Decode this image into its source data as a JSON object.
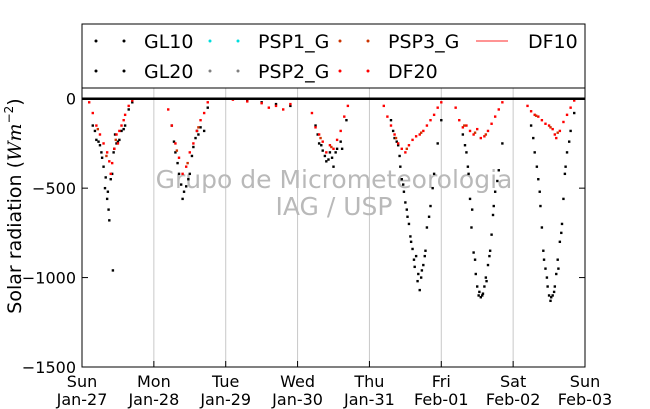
{
  "chart_data": {
    "type": "scatter",
    "title": "",
    "ylabel": "Solar radiation ($Wm^{-2}$)",
    "ylabel_parts": {
      "main": "Solar radiation (",
      "italic": "Wm",
      "sup": "−2",
      "close": ")"
    },
    "xlabel": "",
    "ylim": [
      -1500,
      60
    ],
    "xlim": [
      0,
      7
    ],
    "yticks": [
      {
        "value": 0,
        "label": "0"
      },
      {
        "value": -500,
        "label": "−500"
      },
      {
        "value": -1000,
        "label": "−1000"
      },
      {
        "value": -1500,
        "label": "−1500"
      }
    ],
    "xticks": [
      {
        "value": 0,
        "day": "Sun",
        "date": "Jan-27"
      },
      {
        "value": 1,
        "day": "Mon",
        "date": "Jan-28"
      },
      {
        "value": 2,
        "day": "Tue",
        "date": "Jan-29"
      },
      {
        "value": 3,
        "day": "Wed",
        "date": "Jan-30"
      },
      {
        "value": 4,
        "day": "Thu",
        "date": "Jan-31"
      },
      {
        "value": 5,
        "day": "Fri",
        "date": "Feb-01"
      },
      {
        "value": 6,
        "day": "Sat",
        "date": "Feb-02"
      },
      {
        "value": 7,
        "day": "Sun",
        "date": "Feb-03"
      }
    ],
    "grid": {
      "x": true,
      "y": false
    },
    "legend_placement": "top",
    "watermark": [
      "Grupo de Micrometeorologia",
      "IAG / USP"
    ],
    "colors": {
      "GL10": "#000000",
      "GL20": "#000000",
      "PSP1_G": "#00dddd",
      "PSP2_G": "#808080",
      "PSP3_G": "#cc3300",
      "DF20": "#ff0000",
      "DF10": "#ff7070"
    },
    "legend": [
      {
        "name": "GL10",
        "marker": "dot",
        "color": "#000000"
      },
      {
        "name": "PSP1_G",
        "marker": "dot",
        "color": "#00dddd"
      },
      {
        "name": "PSP3_G",
        "marker": "dot",
        "color": "#cc3300"
      },
      {
        "name": "DF10",
        "marker": "line",
        "color": "#ff7070"
      },
      {
        "name": "GL20",
        "marker": "dot",
        "color": "#000000"
      },
      {
        "name": "PSP2_G",
        "marker": "dot",
        "color": "#808080"
      },
      {
        "name": "DF20",
        "marker": "dot",
        "color": "#ff0000"
      }
    ],
    "series": [
      {
        "name": "GL10",
        "color": "#000000",
        "points": [
          [
            0.15,
            -150
          ],
          [
            0.2,
            -230
          ],
          [
            0.25,
            -260
          ],
          [
            0.28,
            -330
          ],
          [
            0.3,
            -380
          ],
          [
            0.32,
            -500
          ],
          [
            0.35,
            -560
          ],
          [
            0.37,
            -620
          ],
          [
            0.38,
            -680
          ],
          [
            0.42,
            -420
          ],
          [
            0.44,
            -300
          ],
          [
            0.46,
            -200
          ],
          [
            0.48,
            -250
          ],
          [
            0.52,
            -230
          ],
          [
            0.55,
            -180
          ],
          [
            0.6,
            -150
          ],
          [
            0.65,
            -60
          ],
          [
            0.7,
            -20
          ],
          [
            0.43,
            -960
          ],
          [
            1.25,
            -150
          ],
          [
            1.3,
            -300
          ],
          [
            1.35,
            -420
          ],
          [
            1.4,
            -560
          ],
          [
            1.45,
            -490
          ],
          [
            1.5,
            -420
          ],
          [
            1.55,
            -270
          ],
          [
            1.6,
            -180
          ],
          [
            1.62,
            -200
          ],
          [
            1.7,
            -180
          ],
          [
            1.75,
            -50
          ],
          [
            2.3,
            -10
          ],
          [
            2.5,
            -20
          ],
          [
            2.7,
            -30
          ],
          [
            2.9,
            -40
          ],
          [
            3.25,
            -150
          ],
          [
            3.3,
            -250
          ],
          [
            3.35,
            -290
          ],
          [
            3.4,
            -350
          ],
          [
            3.45,
            -300
          ],
          [
            3.5,
            -380
          ],
          [
            3.55,
            -280
          ],
          [
            3.62,
            -280
          ],
          [
            3.68,
            -120
          ],
          [
            4.3,
            -120
          ],
          [
            4.35,
            -220
          ],
          [
            4.4,
            -260
          ],
          [
            4.42,
            -320
          ],
          [
            4.45,
            -450
          ],
          [
            4.48,
            -520
          ],
          [
            4.5,
            -580
          ],
          [
            4.52,
            -620
          ],
          [
            4.55,
            -700
          ],
          [
            4.57,
            -770
          ],
          [
            4.6,
            -840
          ],
          [
            4.62,
            -900
          ],
          [
            4.65,
            -880
          ],
          [
            4.68,
            -980
          ],
          [
            4.7,
            -1070
          ],
          [
            4.72,
            -1000
          ],
          [
            4.75,
            -930
          ],
          [
            4.78,
            -850
          ],
          [
            4.8,
            -720
          ],
          [
            4.85,
            -600
          ],
          [
            4.9,
            -420
          ],
          [
            4.95,
            -250
          ],
          [
            5.0,
            -120
          ],
          [
            5.3,
            -200
          ],
          [
            5.35,
            -300
          ],
          [
            5.38,
            -420
          ],
          [
            5.4,
            -560
          ],
          [
            5.42,
            -720
          ],
          [
            5.45,
            -860
          ],
          [
            5.48,
            -980
          ],
          [
            5.5,
            -1050
          ],
          [
            5.52,
            -1100
          ],
          [
            5.55,
            -1110
          ],
          [
            5.58,
            -1090
          ],
          [
            5.6,
            -1050
          ],
          [
            5.62,
            -1000
          ],
          [
            5.65,
            -930
          ],
          [
            5.68,
            -850
          ],
          [
            5.7,
            -760
          ],
          [
            5.72,
            -650
          ],
          [
            5.75,
            -520
          ],
          [
            5.8,
            -400
          ],
          [
            5.85,
            -250
          ],
          [
            6.25,
            -150
          ],
          [
            6.3,
            -300
          ],
          [
            6.35,
            -450
          ],
          [
            6.38,
            -600
          ],
          [
            6.4,
            -720
          ],
          [
            6.42,
            -850
          ],
          [
            6.45,
            -950
          ],
          [
            6.48,
            -1050
          ],
          [
            6.5,
            -1100
          ],
          [
            6.52,
            -1130
          ],
          [
            6.55,
            -1100
          ],
          [
            6.58,
            -1050
          ],
          [
            6.6,
            -980
          ],
          [
            6.62,
            -900
          ],
          [
            6.65,
            -800
          ],
          [
            6.68,
            -700
          ],
          [
            6.7,
            -560
          ],
          [
            6.72,
            -420
          ],
          [
            6.75,
            -300
          ],
          [
            6.8,
            -180
          ],
          [
            6.85,
            -80
          ]
        ]
      },
      {
        "name": "GL20",
        "color": "#000000",
        "points": [
          [
            0.18,
            -180
          ],
          [
            0.23,
            -240
          ],
          [
            0.27,
            -300
          ],
          [
            0.33,
            -440
          ],
          [
            0.36,
            -520
          ],
          [
            0.4,
            -450
          ],
          [
            0.45,
            -280
          ],
          [
            0.5,
            -240
          ],
          [
            0.58,
            -170
          ],
          [
            1.28,
            -240
          ],
          [
            1.33,
            -360
          ],
          [
            1.38,
            -480
          ],
          [
            1.42,
            -520
          ],
          [
            1.48,
            -450
          ],
          [
            1.53,
            -320
          ],
          [
            1.58,
            -220
          ],
          [
            1.65,
            -160
          ],
          [
            3.28,
            -200
          ],
          [
            3.33,
            -260
          ],
          [
            3.38,
            -320
          ],
          [
            3.43,
            -340
          ],
          [
            3.48,
            -330
          ],
          [
            3.53,
            -300
          ],
          [
            3.6,
            -240
          ],
          [
            4.33,
            -180
          ],
          [
            4.38,
            -240
          ],
          [
            4.43,
            -380
          ],
          [
            4.47,
            -480
          ],
          [
            4.53,
            -660
          ],
          [
            4.58,
            -800
          ],
          [
            4.63,
            -940
          ],
          [
            4.67,
            -1020
          ],
          [
            4.73,
            -960
          ],
          [
            4.77,
            -880
          ],
          [
            4.83,
            -660
          ],
          [
            4.88,
            -500
          ],
          [
            5.33,
            -260
          ],
          [
            5.37,
            -380
          ],
          [
            5.43,
            -620
          ],
          [
            5.47,
            -900
          ],
          [
            5.53,
            -1080
          ],
          [
            5.57,
            -1100
          ],
          [
            5.63,
            -1020
          ],
          [
            5.67,
            -880
          ],
          [
            5.73,
            -600
          ],
          [
            5.78,
            -460
          ],
          [
            6.28,
            -220
          ],
          [
            6.33,
            -380
          ],
          [
            6.37,
            -520
          ],
          [
            6.43,
            -900
          ],
          [
            6.47,
            -1000
          ],
          [
            6.53,
            -1110
          ],
          [
            6.57,
            -1080
          ],
          [
            6.63,
            -950
          ],
          [
            6.67,
            -750
          ],
          [
            6.73,
            -380
          ],
          [
            6.78,
            -240
          ]
        ]
      },
      {
        "name": "DF20",
        "color": "#ff0000",
        "points": [
          [
            0.1,
            -20
          ],
          [
            0.15,
            -80
          ],
          [
            0.2,
            -150
          ],
          [
            0.25,
            -200
          ],
          [
            0.3,
            -250
          ],
          [
            0.35,
            -300
          ],
          [
            0.38,
            -350
          ],
          [
            0.4,
            -420
          ],
          [
            0.42,
            -360
          ],
          [
            0.45,
            -280
          ],
          [
            0.48,
            -200
          ],
          [
            0.5,
            -250
          ],
          [
            0.52,
            -180
          ],
          [
            0.55,
            -150
          ],
          [
            0.58,
            -120
          ],
          [
            0.6,
            -90
          ],
          [
            0.65,
            -40
          ],
          [
            0.7,
            -10
          ],
          [
            1.2,
            -60
          ],
          [
            1.25,
            -150
          ],
          [
            1.3,
            -250
          ],
          [
            1.35,
            -330
          ],
          [
            1.4,
            -420
          ],
          [
            1.45,
            -380
          ],
          [
            1.5,
            -300
          ],
          [
            1.55,
            -250
          ],
          [
            1.6,
            -180
          ],
          [
            1.65,
            -120
          ],
          [
            1.7,
            -80
          ],
          [
            1.75,
            -20
          ],
          [
            2.1,
            -5
          ],
          [
            2.3,
            -15
          ],
          [
            2.5,
            -25
          ],
          [
            2.6,
            -50
          ],
          [
            2.7,
            -40
          ],
          [
            2.8,
            -60
          ],
          [
            2.9,
            -30
          ],
          [
            3.2,
            -80
          ],
          [
            3.25,
            -160
          ],
          [
            3.3,
            -200
          ],
          [
            3.35,
            -240
          ],
          [
            3.4,
            -300
          ],
          [
            3.45,
            -260
          ],
          [
            3.5,
            -280
          ],
          [
            3.55,
            -230
          ],
          [
            3.6,
            -180
          ],
          [
            3.65,
            -100
          ],
          [
            3.7,
            -40
          ],
          [
            4.2,
            -40
          ],
          [
            4.25,
            -100
          ],
          [
            4.3,
            -150
          ],
          [
            4.35,
            -200
          ],
          [
            4.4,
            -250
          ],
          [
            4.45,
            -280
          ],
          [
            4.5,
            -300
          ],
          [
            4.55,
            -260
          ],
          [
            4.6,
            -230
          ],
          [
            4.65,
            -210
          ],
          [
            4.7,
            -200
          ],
          [
            4.75,
            -180
          ],
          [
            4.8,
            -150
          ],
          [
            4.85,
            -120
          ],
          [
            4.9,
            -90
          ],
          [
            4.95,
            -50
          ],
          [
            5.0,
            -20
          ],
          [
            5.2,
            -50
          ],
          [
            5.25,
            -120
          ],
          [
            5.3,
            -160
          ],
          [
            5.35,
            -150
          ],
          [
            5.4,
            -180
          ],
          [
            5.45,
            -200
          ],
          [
            5.5,
            -170
          ],
          [
            5.55,
            -220
          ],
          [
            5.6,
            -210
          ],
          [
            5.65,
            -180
          ],
          [
            5.7,
            -140
          ],
          [
            5.75,
            -100
          ],
          [
            5.8,
            -60
          ],
          [
            5.85,
            -20
          ],
          [
            6.2,
            -40
          ],
          [
            6.25,
            -70
          ],
          [
            6.3,
            -90
          ],
          [
            6.35,
            -100
          ],
          [
            6.4,
            -120
          ],
          [
            6.45,
            -140
          ],
          [
            6.5,
            -150
          ],
          [
            6.55,
            -170
          ],
          [
            6.58,
            -200
          ],
          [
            6.6,
            -220
          ],
          [
            6.65,
            -180
          ],
          [
            6.7,
            -130
          ],
          [
            6.75,
            -90
          ],
          [
            6.8,
            -50
          ],
          [
            6.85,
            -10
          ]
        ]
      },
      {
        "name": "PSP3_G",
        "color": "#cc3300",
        "points": [
          [
            0.22,
            -170
          ],
          [
            0.34,
            -320
          ],
          [
            0.47,
            -230
          ],
          [
            1.32,
            -290
          ],
          [
            1.47,
            -360
          ],
          [
            1.62,
            -160
          ],
          [
            3.32,
            -220
          ],
          [
            3.47,
            -270
          ],
          [
            4.37,
            -220
          ],
          [
            4.52,
            -280
          ],
          [
            4.72,
            -190
          ],
          [
            5.32,
            -150
          ],
          [
            5.47,
            -190
          ],
          [
            5.62,
            -200
          ],
          [
            6.32,
            -95
          ],
          [
            6.52,
            -160
          ],
          [
            6.62,
            -190
          ]
        ]
      }
    ]
  }
}
